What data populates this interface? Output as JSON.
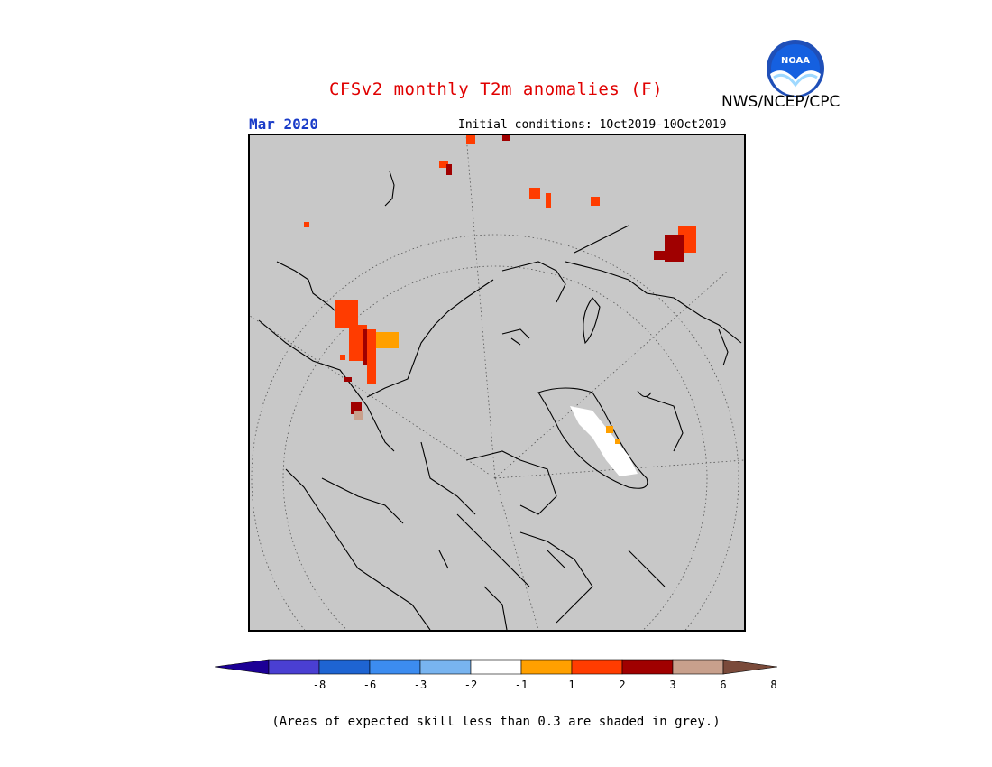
{
  "title": "CFSv2 monthly T2m anomalies (F)",
  "agency": "NWS/NCEP/CPC",
  "logo_text": "NOAA",
  "month": "Mar 2020",
  "initial_conditions": "Initial conditions: 1Oct2019-10Oct2019",
  "footnote": "(Areas of expected skill less than 0.3 are shaded in grey.)",
  "colorbar": {
    "ticks": [
      "-8",
      "-6",
      "-3",
      "-2",
      "-1",
      "1",
      "2",
      "3",
      "6",
      "8"
    ],
    "colors": [
      "#1c0096",
      "#4a3fd2",
      "#1e64d2",
      "#3c8cf0",
      "#78b4f0",
      "#ffffff",
      "#ffa000",
      "#ff3c00",
      "#a00000",
      "#c8a08c",
      "#7a4a3a"
    ]
  },
  "map": {
    "projection": "north-polar-stereographic",
    "background_color": "#c8c8c8"
  }
}
